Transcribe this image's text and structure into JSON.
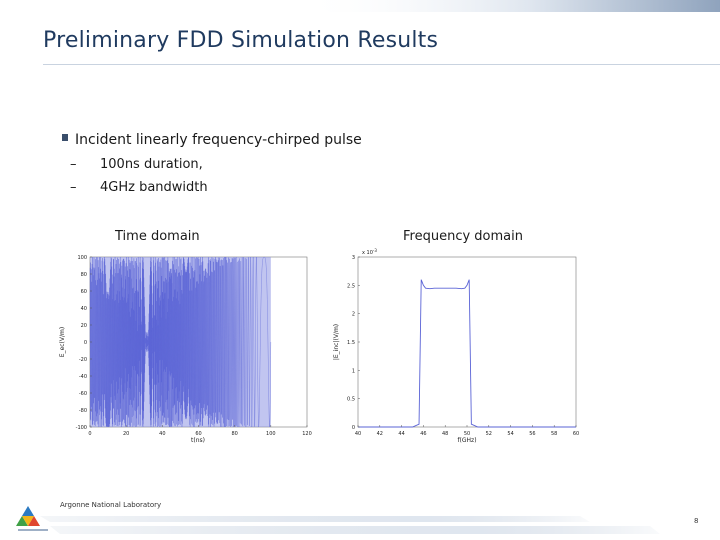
{
  "slide": {
    "title": "Preliminary FDD Simulation Results",
    "bullet": "Incident linearly frequency-chirped pulse",
    "sub_bullets": [
      "100ns duration,",
      "4GHz bandwidth"
    ],
    "footer": "Argonne National Laboratory",
    "page_number": "8",
    "accent_color": "#1f3a5f",
    "band_color": "#9fb0c6"
  },
  "chart_data": [
    {
      "type": "line",
      "caption": "Time domain",
      "xlabel": "t(ns)",
      "ylabel": "E_ec(V/m)",
      "xlim": [
        0,
        120
      ],
      "ylim": [
        -100,
        100
      ],
      "x_ticks": [
        "0",
        "20",
        "40",
        "60",
        "80",
        "100",
        "120"
      ],
      "y_ticks": [
        "100",
        "80",
        "60",
        "40",
        "20",
        "0",
        "-20",
        "-40",
        "-60",
        "-80",
        "-100"
      ],
      "envelope": {
        "x_start": 0,
        "x_end": 100,
        "amplitude": 100
      },
      "color": "#5a63d6"
    },
    {
      "type": "line",
      "caption": "Frequency domain",
      "xlabel": "f(GHz)",
      "ylabel": "|E_inc|(V/m)",
      "scale_note": "x 10",
      "scale_exp": "-3",
      "xlim": [
        40,
        60
      ],
      "ylim": [
        0,
        3
      ],
      "x_ticks": [
        "40",
        "42",
        "44",
        "46",
        "48",
        "50",
        "52",
        "54",
        "56",
        "58",
        "60"
      ],
      "y_ticks": [
        "3",
        "2.5",
        "2",
        "1.5",
        "1",
        "0.5",
        "0"
      ],
      "x": [
        40,
        45,
        45.6,
        45.8,
        46,
        46.2,
        46.6,
        47,
        48,
        49,
        49.5,
        49.8,
        50,
        50.2,
        50.4,
        51,
        60
      ],
      "y": [
        0,
        0,
        0.05,
        2.6,
        2.5,
        2.45,
        2.44,
        2.45,
        2.45,
        2.45,
        2.44,
        2.45,
        2.5,
        2.6,
        0.05,
        0,
        0
      ],
      "color": "#5a63d6"
    }
  ]
}
